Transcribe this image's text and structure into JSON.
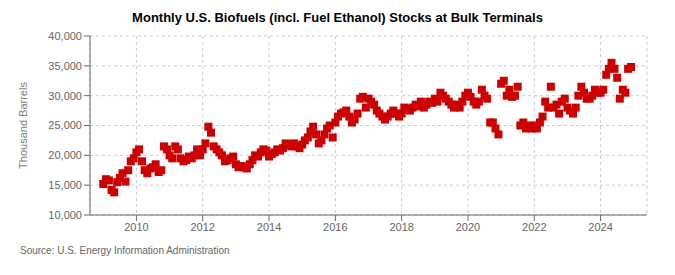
{
  "chart_data": {
    "type": "scatter",
    "title": "Monthly U.S. Biofuels (incl. Fuel Ethanol) Stocks at Bulk Terminals",
    "y_label": "Thousand Barrels",
    "annotations": [
      "Source: U.S. Energy Information Administration"
    ],
    "color": "#cc0000",
    "marker": "square",
    "grid": true,
    "xlim": [
      2008.6,
      2025.4
    ],
    "xticks": [
      2010,
      2012,
      2014,
      2016,
      2018,
      2020,
      2022,
      2024
    ],
    "ylim": [
      10000,
      40000
    ],
    "yticks": [
      {
        "value": 10000,
        "label": "10,000"
      },
      {
        "value": 15000,
        "label": "15,000"
      },
      {
        "value": 20000,
        "label": "20,000"
      },
      {
        "value": 25000,
        "label": "25,000"
      },
      {
        "value": 30000,
        "label": "30,000"
      },
      {
        "value": 35000,
        "label": "35,000"
      },
      {
        "value": 40000,
        "label": "40,000"
      }
    ],
    "x": [
      2009.0,
      2009.08,
      2009.17,
      2009.25,
      2009.33,
      2009.42,
      2009.5,
      2009.58,
      2009.67,
      2009.75,
      2009.83,
      2009.92,
      2010.0,
      2010.08,
      2010.17,
      2010.25,
      2010.33,
      2010.42,
      2010.5,
      2010.58,
      2010.67,
      2010.75,
      2010.83,
      2010.92,
      2011.0,
      2011.08,
      2011.17,
      2011.25,
      2011.33,
      2011.42,
      2011.5,
      2011.58,
      2011.67,
      2011.75,
      2011.83,
      2011.92,
      2012.0,
      2012.08,
      2012.17,
      2012.25,
      2012.33,
      2012.42,
      2012.5,
      2012.58,
      2012.67,
      2012.75,
      2012.83,
      2012.92,
      2013.0,
      2013.08,
      2013.17,
      2013.25,
      2013.33,
      2013.42,
      2013.5,
      2013.58,
      2013.67,
      2013.75,
      2013.83,
      2013.92,
      2014.0,
      2014.08,
      2014.17,
      2014.25,
      2014.33,
      2014.42,
      2014.5,
      2014.58,
      2014.67,
      2014.75,
      2014.83,
      2014.92,
      2015.0,
      2015.08,
      2015.17,
      2015.25,
      2015.33,
      2015.42,
      2015.5,
      2015.58,
      2015.67,
      2015.75,
      2015.83,
      2015.92,
      2016.0,
      2016.08,
      2016.17,
      2016.25,
      2016.33,
      2016.42,
      2016.5,
      2016.58,
      2016.67,
      2016.75,
      2016.83,
      2016.92,
      2017.0,
      2017.08,
      2017.17,
      2017.25,
      2017.33,
      2017.42,
      2017.5,
      2017.58,
      2017.67,
      2017.75,
      2017.83,
      2017.92,
      2018.0,
      2018.08,
      2018.17,
      2018.25,
      2018.33,
      2018.42,
      2018.5,
      2018.58,
      2018.67,
      2018.75,
      2018.83,
      2018.92,
      2019.0,
      2019.08,
      2019.17,
      2019.25,
      2019.33,
      2019.42,
      2019.5,
      2019.58,
      2019.67,
      2019.75,
      2019.83,
      2019.92,
      2020.0,
      2020.08,
      2020.17,
      2020.25,
      2020.33,
      2020.42,
      2020.5,
      2020.58,
      2020.67,
      2020.75,
      2020.83,
      2020.92,
      2021.0,
      2021.08,
      2021.17,
      2021.25,
      2021.33,
      2021.42,
      2021.5,
      2021.58,
      2021.67,
      2021.75,
      2021.83,
      2021.92,
      2022.0,
      2022.08,
      2022.17,
      2022.25,
      2022.33,
      2022.42,
      2022.5,
      2022.58,
      2022.67,
      2022.75,
      2022.83,
      2022.92,
      2023.0,
      2023.08,
      2023.17,
      2023.25,
      2023.33,
      2023.42,
      2023.5,
      2023.58,
      2023.67,
      2023.75,
      2023.83,
      2023.92,
      2024.0,
      2024.08,
      2024.17,
      2024.25,
      2024.33,
      2024.42,
      2024.5,
      2024.58,
      2024.67,
      2024.75,
      2024.83,
      2024.92
    ],
    "values": [
      15200,
      16000,
      15800,
      14200,
      13800,
      15500,
      16200,
      17000,
      15600,
      17500,
      19000,
      19500,
      20500,
      21000,
      19000,
      17500,
      17000,
      17800,
      18000,
      18500,
      17200,
      17500,
      21500,
      21000,
      20000,
      19500,
      21500,
      21000,
      19500,
      19000,
      19200,
      19800,
      19500,
      20000,
      21000,
      20000,
      21000,
      22000,
      24800,
      23800,
      21500,
      21000,
      20500,
      20000,
      19000,
      19200,
      19500,
      19800,
      18500,
      18000,
      18200,
      18000,
      17800,
      18500,
      19200,
      20000,
      19800,
      20500,
      21000,
      20800,
      19800,
      20200,
      20500,
      21000,
      20800,
      21200,
      22000,
      21800,
      21500,
      22000,
      21500,
      21200,
      21800,
      22500,
      23000,
      24000,
      24800,
      23500,
      22000,
      22500,
      23500,
      24500,
      25000,
      23000,
      25500,
      26500,
      27000,
      27200,
      27500,
      26500,
      25500,
      26000,
      27000,
      29500,
      29800,
      28000,
      29500,
      29000,
      28500,
      27500,
      27000,
      26500,
      26000,
      26500,
      27000,
      27500,
      27000,
      26500,
      27000,
      28000,
      27800,
      27500,
      28000,
      28500,
      28200,
      29000,
      28000,
      28500,
      29000,
      28800,
      29500,
      29000,
      30500,
      30000,
      29500,
      29000,
      28500,
      28000,
      28500,
      28000,
      29000,
      30000,
      30500,
      29800,
      29000,
      28500,
      29000,
      31000,
      30000,
      29500,
      25500,
      25500,
      24500,
      23500,
      32000,
      32500,
      30000,
      31000,
      29800,
      30000,
      31500,
      25000,
      25500,
      24500,
      25000,
      24500,
      25000,
      24500,
      25500,
      26500,
      29000,
      28000,
      31500,
      28000,
      28500,
      27000,
      29000,
      29500,
      28000,
      27500,
      27000,
      28000,
      30000,
      31500,
      30500,
      29500,
      29500,
      30000,
      31000,
      30500,
      30500,
      31000,
      33500,
      34500,
      35500,
      34500,
      33000,
      29500,
      31000,
      30500,
      34500,
      34800
    ]
  }
}
